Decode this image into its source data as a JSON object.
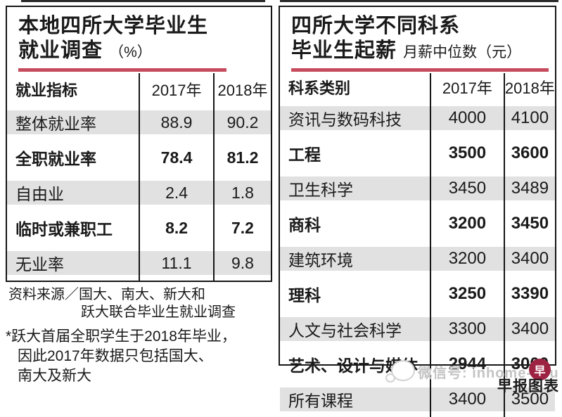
{
  "left_panel": {
    "title_line1": "本地四所大学毕业生",
    "title_line2": "就业调查",
    "title_suffix": "（%）",
    "header": {
      "col1": "就业指标",
      "col2": "2017年",
      "col3": "2018年"
    },
    "rows": [
      {
        "label": "整体就业率",
        "v1": "88.9",
        "v2": "90.2"
      },
      {
        "label": "全职就业率",
        "v1": "78.4",
        "v2": "81.2"
      },
      {
        "label": "自由业",
        "v1": "2.4",
        "v2": "1.8"
      },
      {
        "label": "临时或兼职工",
        "v1": "8.2",
        "v2": "7.2"
      },
      {
        "label": "无业率",
        "v1": "11.1",
        "v2": "9.8"
      }
    ],
    "source_line1": "资料来源／国大、南大、新大和",
    "source_line2": "跃大联合毕业生就业调查",
    "footnote_line1": "*跃大首届全职学生于2018年毕业，",
    "footnote_line2": "因此2017年数据只包括国大、",
    "footnote_line3": "南大及新大"
  },
  "right_panel": {
    "title_line1": "四所大学不同科系",
    "title_line2": "毕业生起薪",
    "title_suffix": "月薪中位数（元）",
    "header": {
      "col1": "科系类别",
      "col2": "2017年",
      "col3": "2018年"
    },
    "rows": [
      {
        "label": "资讯与数码科技",
        "v1": "4000",
        "v2": "4100"
      },
      {
        "label": "工程",
        "v1": "3500",
        "v2": "3600"
      },
      {
        "label": "卫生科学",
        "v1": "3450",
        "v2": "3489"
      },
      {
        "label": "商科",
        "v1": "3200",
        "v2": "3450"
      },
      {
        "label": "建筑环境",
        "v1": "3200",
        "v2": "3400"
      },
      {
        "label": "理科",
        "v1": "3250",
        "v2": "3390"
      },
      {
        "label": "人文与社会科学",
        "v1": "3300",
        "v2": "3400"
      },
      {
        "label": "艺术、设计与媒体",
        "v1": "2944",
        "v2": "3000"
      },
      {
        "label": "所有课程",
        "v1": "3400",
        "v2": "3500"
      }
    ]
  },
  "watermark": {
    "text": "微信号: inhome-edu",
    "stamp_char": "早"
  },
  "credit": "早报图表",
  "colors": {
    "accent_red": "#c64b5c",
    "row_shade": "#e1e1e1",
    "border_ink": "#161616",
    "stamp_red": "#9d2342",
    "watermark_gray": "#c4c4c4"
  },
  "chart_data": [
    {
      "type": "table",
      "title": "本地四所大学毕业生就业调查（%）",
      "columns": [
        "就业指标",
        "2017年",
        "2018年"
      ],
      "rows": [
        [
          "整体就业率",
          88.9,
          90.2
        ],
        [
          "全职就业率",
          78.4,
          81.2
        ],
        [
          "自由业",
          2.4,
          1.8
        ],
        [
          "临时或兼职工",
          8.2,
          7.2
        ],
        [
          "无业率",
          11.1,
          9.8
        ]
      ],
      "source": "资料来源／国大、南大、新大和跃大联合毕业生就业调查",
      "footnote": "*跃大首届全职学生于2018年毕业，因此2017年数据只包括国大、南大及新大"
    },
    {
      "type": "table",
      "title": "四所大学不同科系毕业生起薪 月薪中位数（元）",
      "columns": [
        "科系类别",
        "2017年",
        "2018年"
      ],
      "rows": [
        [
          "资讯与数码科技",
          4000,
          4100
        ],
        [
          "工程",
          3500,
          3600
        ],
        [
          "卫生科学",
          3450,
          3489
        ],
        [
          "商科",
          3200,
          3450
        ],
        [
          "建筑环境",
          3200,
          3400
        ],
        [
          "理科",
          3250,
          3390
        ],
        [
          "人文与社会科学",
          3300,
          3400
        ],
        [
          "艺术、设计与媒体",
          2944,
          3000
        ],
        [
          "所有课程",
          3400,
          3500
        ]
      ],
      "credit": "早报图表"
    }
  ]
}
